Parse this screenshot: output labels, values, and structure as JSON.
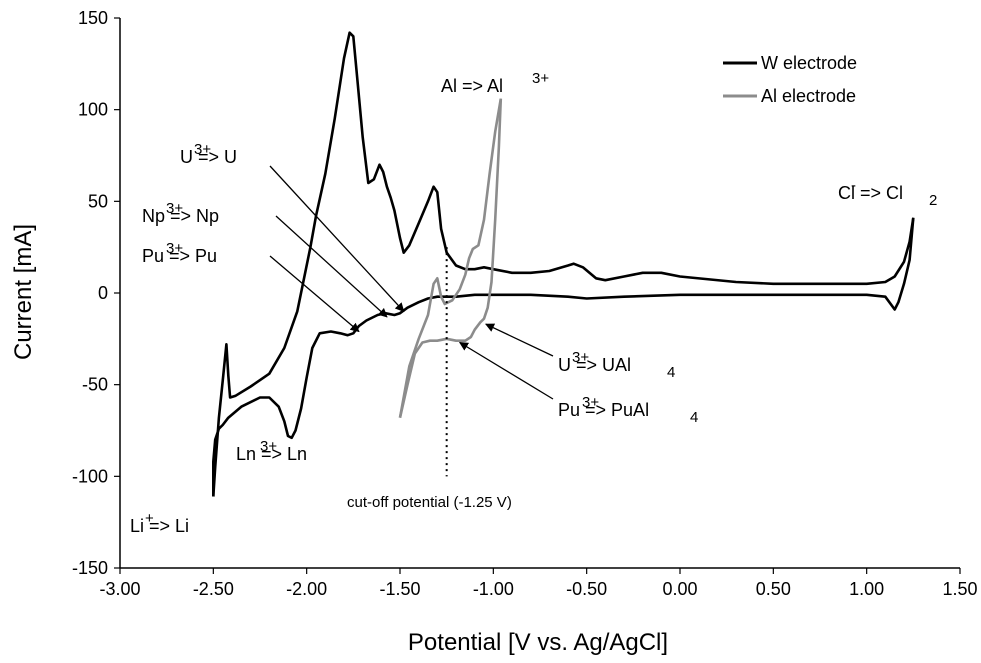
{
  "chart_data": {
    "type": "line",
    "xlabel": "Potential [V vs. Ag/AgCl]",
    "ylabel": "Current [mA]",
    "xlim": [
      -3.0,
      1.5
    ],
    "ylim": [
      -150,
      150
    ],
    "x_ticks": [
      "-3.00",
      "-2.50",
      "-2.00",
      "-1.50",
      "-1.00",
      "-0.50",
      "0.00",
      "0.50",
      "1.00",
      "1.50"
    ],
    "y_ticks": [
      "150",
      "100",
      "50",
      "0",
      "-50",
      "-100",
      "-150"
    ],
    "grid": false,
    "legend_position": "top-right",
    "colors": {
      "w": "#000000",
      "al": "#8c8c8c"
    },
    "series": [
      {
        "name": "W electrode",
        "color": "#000000",
        "segments": [
          [
            [
              -2.5,
              -111
            ],
            [
              -2.5,
              -92
            ],
            [
              -2.49,
              -80
            ],
            [
              -2.47,
              -74
            ],
            [
              -2.45,
              -72
            ],
            [
              -2.42,
              -68
            ],
            [
              -2.35,
              -62
            ],
            [
              -2.25,
              -57
            ],
            [
              -2.2,
              -57
            ],
            [
              -2.15,
              -62
            ],
            [
              -2.12,
              -70
            ],
            [
              -2.1,
              -78
            ],
            [
              -2.08,
              -79
            ],
            [
              -2.06,
              -75
            ],
            [
              -2.03,
              -63
            ],
            [
              -2.0,
              -46
            ],
            [
              -1.97,
              -30
            ],
            [
              -1.93,
              -22
            ],
            [
              -1.87,
              -21
            ],
            [
              -1.82,
              -22
            ],
            [
              -1.78,
              -23
            ],
            [
              -1.75,
              -22
            ],
            [
              -1.72,
              -18
            ],
            [
              -1.68,
              -15
            ],
            [
              -1.62,
              -12
            ],
            [
              -1.58,
              -11
            ],
            [
              -1.53,
              -12
            ],
            [
              -1.5,
              -11
            ],
            [
              -1.46,
              -8
            ],
            [
              -1.4,
              -5
            ],
            [
              -1.35,
              -3
            ],
            [
              -1.3,
              -2
            ],
            [
              -1.2,
              -2
            ],
            [
              -1.1,
              -1
            ],
            [
              -0.8,
              -1
            ],
            [
              -0.6,
              -2
            ],
            [
              -0.5,
              -3
            ],
            [
              -0.3,
              -2
            ],
            [
              0.0,
              -1
            ],
            [
              0.5,
              -1
            ],
            [
              1.0,
              -1
            ],
            [
              1.1,
              -2
            ],
            [
              1.15,
              -9
            ],
            [
              1.17,
              -5
            ],
            [
              1.2,
              5
            ],
            [
              1.23,
              18
            ],
            [
              1.25,
              41
            ]
          ],
          [
            [
              -2.5,
              -111
            ],
            [
              -2.49,
              -95
            ],
            [
              -2.47,
              -68
            ],
            [
              -2.45,
              -48
            ],
            [
              -2.43,
              -28
            ],
            [
              -2.42,
              -45
            ],
            [
              -2.41,
              -57
            ],
            [
              -2.38,
              -56
            ],
            [
              -2.3,
              -51
            ],
            [
              -2.2,
              -44
            ],
            [
              -2.12,
              -30
            ],
            [
              -2.05,
              -10
            ],
            [
              -1.98,
              25
            ],
            [
              -1.95,
              42
            ],
            [
              -1.9,
              65
            ],
            [
              -1.85,
              95
            ],
            [
              -1.8,
              128
            ],
            [
              -1.77,
              142
            ],
            [
              -1.75,
              140
            ],
            [
              -1.73,
              118
            ],
            [
              -1.7,
              85
            ],
            [
              -1.67,
              60
            ],
            [
              -1.64,
              62
            ],
            [
              -1.61,
              70
            ],
            [
              -1.59,
              66
            ],
            [
              -1.57,
              58
            ],
            [
              -1.55,
              52
            ],
            [
              -1.53,
              45
            ],
            [
              -1.5,
              30
            ],
            [
              -1.48,
              22
            ],
            [
              -1.45,
              26
            ],
            [
              -1.4,
              38
            ],
            [
              -1.35,
              50
            ],
            [
              -1.32,
              58
            ],
            [
              -1.3,
              55
            ],
            [
              -1.28,
              35
            ],
            [
              -1.25,
              22
            ],
            [
              -1.2,
              15
            ],
            [
              -1.15,
              13
            ],
            [
              -1.1,
              13
            ],
            [
              -1.05,
              14
            ],
            [
              -1.0,
              13
            ],
            [
              -0.9,
              11
            ],
            [
              -0.8,
              11
            ],
            [
              -0.7,
              12
            ],
            [
              -0.6,
              15
            ],
            [
              -0.57,
              16
            ],
            [
              -0.52,
              14
            ],
            [
              -0.45,
              8
            ],
            [
              -0.4,
              7
            ],
            [
              -0.3,
              9
            ],
            [
              -0.2,
              11
            ],
            [
              -0.1,
              11
            ],
            [
              0.0,
              9
            ],
            [
              0.3,
              6
            ],
            [
              0.5,
              5
            ],
            [
              0.8,
              5
            ],
            [
              1.0,
              5
            ],
            [
              1.1,
              6
            ],
            [
              1.15,
              9
            ],
            [
              1.2,
              17
            ],
            [
              1.23,
              28
            ],
            [
              1.25,
              41
            ]
          ]
        ]
      },
      {
        "name": "Al electrode",
        "color": "#8c8c8c",
        "segments": [
          [
            [
              -1.5,
              -68
            ],
            [
              -1.46,
              -50
            ],
            [
              -1.42,
              -33
            ],
            [
              -1.38,
              -27
            ],
            [
              -1.34,
              -26
            ],
            [
              -1.3,
              -26
            ],
            [
              -1.25,
              -25
            ],
            [
              -1.2,
              -26
            ],
            [
              -1.15,
              -26
            ],
            [
              -1.12,
              -24
            ],
            [
              -1.1,
              -20
            ],
            [
              -1.07,
              -16
            ],
            [
              -1.05,
              -14
            ],
            [
              -1.03,
              -8
            ],
            [
              -1.01,
              6
            ],
            [
              -0.99,
              40
            ],
            [
              -0.97,
              80
            ],
            [
              -0.96,
              106
            ]
          ],
          [
            [
              -1.5,
              -68
            ],
            [
              -1.45,
              -40
            ],
            [
              -1.4,
              -25
            ],
            [
              -1.35,
              -12
            ],
            [
              -1.32,
              5
            ],
            [
              -1.3,
              8
            ],
            [
              -1.28,
              -2
            ],
            [
              -1.26,
              -6
            ],
            [
              -1.22,
              -4
            ],
            [
              -1.18,
              2
            ],
            [
              -1.15,
              10
            ],
            [
              -1.13,
              19
            ],
            [
              -1.11,
              24
            ],
            [
              -1.08,
              26
            ],
            [
              -1.05,
              40
            ],
            [
              -1.02,
              65
            ],
            [
              -0.99,
              88
            ],
            [
              -0.96,
              106
            ]
          ]
        ]
      }
    ],
    "annotations": {
      "u3_u": "U => U",
      "np3_np": "Np => Np",
      "pu3_pu": "Pu => Pu",
      "ln3_ln": "Ln => Ln",
      "li_li": "Li => Li",
      "al_al3": "Al => Al",
      "cl_cl2": "Cl => Cl",
      "u3_ual4": "U => UAl",
      "pu3_pual4": "Pu => PuAl",
      "cutoff": "cut-off potential (-1.25 V)",
      "sup_3plus": "3+",
      "sup_plus": "+",
      "sup_minus": "-",
      "sub_2": "2",
      "sub_4": "4"
    }
  }
}
